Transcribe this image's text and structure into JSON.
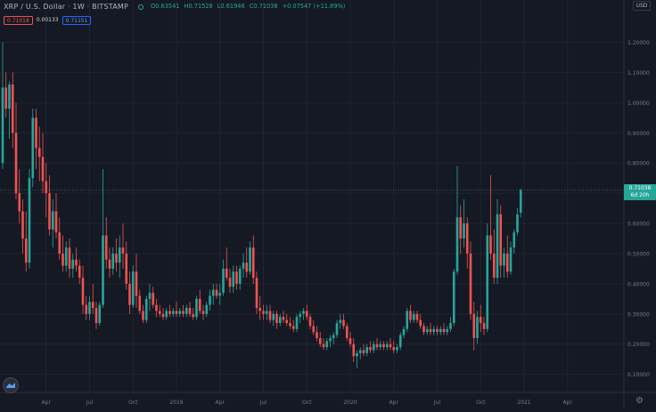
{
  "header": {
    "title": "XRP / U.S. Dollar · 1W · BITSTAMP",
    "open": "O0.63541",
    "high": "H0.71528",
    "low": "L0.61946",
    "close": "C0.71038",
    "change": "+0.07547 (+11.89%)"
  },
  "order_boxes": {
    "sell": "0.71018",
    "spread": "0.00133",
    "buy": "0.71151"
  },
  "currency_button": "USD",
  "last_price": {
    "price": "0.71038",
    "countdown": "6d 20h"
  },
  "colors": {
    "background": "#151924",
    "grid": "#1f2430",
    "up": "#26a69a",
    "down": "#ef5350",
    "axis_text": "#787b86",
    "last_price_line": "#26a69a"
  },
  "icons": {
    "logo": "tradingview-logo-icon",
    "settings": "gear-icon"
  },
  "chart_data": {
    "type": "candlestick",
    "ylim": [
      0.04,
      1.34
    ],
    "y_ticks": [
      "0.10000",
      "0.20000",
      "0.30000",
      "0.40000",
      "0.50000",
      "0.60000",
      "0.70000",
      "0.80000",
      "0.90000",
      "1.00000",
      "1.10000",
      "1.20000"
    ],
    "y_tick_values": [
      0.1,
      0.2,
      0.3,
      0.4,
      0.5,
      0.6,
      0.7,
      0.8,
      0.9,
      1.0,
      1.1,
      1.2
    ],
    "x_ticks": [
      "Apr",
      "Jul",
      "Oct",
      "2019",
      "Apr",
      "Jul",
      "Oct",
      "2020",
      "Apr",
      "Jul",
      "Oct",
      "2021",
      "Apr"
    ],
    "x_tick_index": [
      13,
      26,
      39,
      52,
      65,
      78,
      91,
      104,
      117,
      130,
      143,
      156,
      169
    ],
    "last_price": 0.71038,
    "candles": [
      [
        0.8,
        1.2,
        0.78,
        1.05
      ],
      [
        1.05,
        1.1,
        0.95,
        0.98
      ],
      [
        0.98,
        1.07,
        0.88,
        1.06
      ],
      [
        1.06,
        1.1,
        0.85,
        0.9
      ],
      [
        0.9,
        1.0,
        0.68,
        0.7
      ],
      [
        0.7,
        0.78,
        0.6,
        0.64
      ],
      [
        0.64,
        0.68,
        0.5,
        0.55
      ],
      [
        0.55,
        0.64,
        0.44,
        0.47
      ],
      [
        0.47,
        0.78,
        0.45,
        0.75
      ],
      [
        0.75,
        0.98,
        0.72,
        0.95
      ],
      [
        0.95,
        0.98,
        0.78,
        0.85
      ],
      [
        0.85,
        0.92,
        0.74,
        0.82
      ],
      [
        0.82,
        0.9,
        0.7,
        0.74
      ],
      [
        0.74,
        0.8,
        0.62,
        0.7
      ],
      [
        0.7,
        0.76,
        0.56,
        0.58
      ],
      [
        0.58,
        0.68,
        0.52,
        0.64
      ],
      [
        0.64,
        0.7,
        0.55,
        0.57
      ],
      [
        0.57,
        0.62,
        0.48,
        0.5
      ],
      [
        0.5,
        0.56,
        0.44,
        0.46
      ],
      [
        0.46,
        0.54,
        0.44,
        0.52
      ],
      [
        0.52,
        0.55,
        0.42,
        0.45
      ],
      [
        0.45,
        0.5,
        0.42,
        0.48
      ],
      [
        0.48,
        0.52,
        0.44,
        0.46
      ],
      [
        0.46,
        0.48,
        0.4,
        0.42
      ],
      [
        0.42,
        0.46,
        0.3,
        0.33
      ],
      [
        0.33,
        0.36,
        0.28,
        0.3
      ],
      [
        0.3,
        0.36,
        0.28,
        0.34
      ],
      [
        0.34,
        0.4,
        0.3,
        0.32
      ],
      [
        0.32,
        0.34,
        0.25,
        0.27
      ],
      [
        0.27,
        0.34,
        0.26,
        0.33
      ],
      [
        0.33,
        0.78,
        0.32,
        0.56
      ],
      [
        0.56,
        0.62,
        0.45,
        0.48
      ],
      [
        0.48,
        0.52,
        0.42,
        0.45
      ],
      [
        0.45,
        0.52,
        0.43,
        0.5
      ],
      [
        0.5,
        0.55,
        0.44,
        0.47
      ],
      [
        0.47,
        0.56,
        0.42,
        0.52
      ],
      [
        0.52,
        0.6,
        0.45,
        0.5
      ],
      [
        0.5,
        0.54,
        0.38,
        0.4
      ],
      [
        0.4,
        0.44,
        0.3,
        0.33
      ],
      [
        0.33,
        0.46,
        0.32,
        0.44
      ],
      [
        0.44,
        0.5,
        0.32,
        0.36
      ],
      [
        0.36,
        0.38,
        0.3,
        0.31
      ],
      [
        0.31,
        0.33,
        0.27,
        0.28
      ],
      [
        0.28,
        0.36,
        0.27,
        0.35
      ],
      [
        0.35,
        0.4,
        0.31,
        0.37
      ],
      [
        0.37,
        0.39,
        0.32,
        0.33
      ],
      [
        0.33,
        0.35,
        0.29,
        0.31
      ],
      [
        0.31,
        0.33,
        0.29,
        0.3
      ],
      [
        0.3,
        0.32,
        0.28,
        0.29
      ],
      [
        0.29,
        0.32,
        0.28,
        0.31
      ],
      [
        0.31,
        0.33,
        0.29,
        0.3
      ],
      [
        0.3,
        0.32,
        0.29,
        0.31
      ],
      [
        0.31,
        0.34,
        0.29,
        0.3
      ],
      [
        0.3,
        0.32,
        0.29,
        0.31
      ],
      [
        0.31,
        0.33,
        0.29,
        0.3
      ],
      [
        0.3,
        0.33,
        0.29,
        0.32
      ],
      [
        0.32,
        0.34,
        0.29,
        0.3
      ],
      [
        0.3,
        0.32,
        0.28,
        0.29
      ],
      [
        0.29,
        0.36,
        0.28,
        0.35
      ],
      [
        0.35,
        0.38,
        0.3,
        0.31
      ],
      [
        0.31,
        0.33,
        0.28,
        0.3
      ],
      [
        0.3,
        0.34,
        0.29,
        0.33
      ],
      [
        0.33,
        0.38,
        0.31,
        0.36
      ],
      [
        0.36,
        0.4,
        0.33,
        0.38
      ],
      [
        0.38,
        0.4,
        0.35,
        0.36
      ],
      [
        0.36,
        0.4,
        0.33,
        0.37
      ],
      [
        0.37,
        0.48,
        0.36,
        0.45
      ],
      [
        0.45,
        0.52,
        0.41,
        0.42
      ],
      [
        0.42,
        0.45,
        0.37,
        0.39
      ],
      [
        0.39,
        0.46,
        0.37,
        0.44
      ],
      [
        0.44,
        0.46,
        0.38,
        0.4
      ],
      [
        0.4,
        0.46,
        0.38,
        0.45
      ],
      [
        0.45,
        0.5,
        0.42,
        0.47
      ],
      [
        0.47,
        0.52,
        0.42,
        0.44
      ],
      [
        0.44,
        0.54,
        0.43,
        0.52
      ],
      [
        0.52,
        0.56,
        0.4,
        0.42
      ],
      [
        0.42,
        0.44,
        0.3,
        0.32
      ],
      [
        0.32,
        0.36,
        0.28,
        0.31
      ],
      [
        0.31,
        0.33,
        0.28,
        0.3
      ],
      [
        0.3,
        0.33,
        0.28,
        0.31
      ],
      [
        0.31,
        0.33,
        0.27,
        0.28
      ],
      [
        0.28,
        0.31,
        0.26,
        0.3
      ],
      [
        0.3,
        0.31,
        0.25,
        0.27
      ],
      [
        0.27,
        0.3,
        0.26,
        0.29
      ],
      [
        0.29,
        0.31,
        0.27,
        0.28
      ],
      [
        0.28,
        0.3,
        0.26,
        0.27
      ],
      [
        0.27,
        0.29,
        0.25,
        0.26
      ],
      [
        0.26,
        0.28,
        0.24,
        0.25
      ],
      [
        0.25,
        0.3,
        0.24,
        0.29
      ],
      [
        0.29,
        0.31,
        0.27,
        0.3
      ],
      [
        0.3,
        0.32,
        0.28,
        0.31
      ],
      [
        0.31,
        0.33,
        0.28,
        0.29
      ],
      [
        0.29,
        0.3,
        0.25,
        0.26
      ],
      [
        0.26,
        0.28,
        0.23,
        0.24
      ],
      [
        0.24,
        0.26,
        0.21,
        0.22
      ],
      [
        0.22,
        0.24,
        0.19,
        0.2
      ],
      [
        0.2,
        0.22,
        0.18,
        0.19
      ],
      [
        0.19,
        0.22,
        0.18,
        0.21
      ],
      [
        0.21,
        0.23,
        0.19,
        0.22
      ],
      [
        0.22,
        0.24,
        0.2,
        0.23
      ],
      [
        0.23,
        0.28,
        0.22,
        0.27
      ],
      [
        0.27,
        0.3,
        0.25,
        0.28
      ],
      [
        0.28,
        0.3,
        0.25,
        0.26
      ],
      [
        0.26,
        0.27,
        0.21,
        0.22
      ],
      [
        0.22,
        0.24,
        0.19,
        0.2
      ],
      [
        0.2,
        0.22,
        0.14,
        0.16
      ],
      [
        0.16,
        0.18,
        0.12,
        0.17
      ],
      [
        0.17,
        0.19,
        0.15,
        0.18
      ],
      [
        0.18,
        0.2,
        0.16,
        0.17
      ],
      [
        0.17,
        0.2,
        0.16,
        0.19
      ],
      [
        0.19,
        0.21,
        0.17,
        0.18
      ],
      [
        0.18,
        0.21,
        0.17,
        0.2
      ],
      [
        0.2,
        0.22,
        0.18,
        0.19
      ],
      [
        0.19,
        0.21,
        0.18,
        0.2
      ],
      [
        0.2,
        0.21,
        0.18,
        0.19
      ],
      [
        0.19,
        0.21,
        0.18,
        0.2
      ],
      [
        0.2,
        0.22,
        0.18,
        0.19
      ],
      [
        0.19,
        0.21,
        0.17,
        0.18
      ],
      [
        0.18,
        0.2,
        0.17,
        0.19
      ],
      [
        0.19,
        0.24,
        0.18,
        0.23
      ],
      [
        0.23,
        0.26,
        0.22,
        0.25
      ],
      [
        0.25,
        0.32,
        0.24,
        0.31
      ],
      [
        0.31,
        0.33,
        0.27,
        0.28
      ],
      [
        0.28,
        0.31,
        0.27,
        0.3
      ],
      [
        0.3,
        0.31,
        0.27,
        0.28
      ],
      [
        0.28,
        0.3,
        0.25,
        0.26
      ],
      [
        0.26,
        0.27,
        0.23,
        0.24
      ],
      [
        0.24,
        0.26,
        0.23,
        0.25
      ],
      [
        0.25,
        0.27,
        0.23,
        0.24
      ],
      [
        0.24,
        0.26,
        0.23,
        0.25
      ],
      [
        0.25,
        0.26,
        0.23,
        0.24
      ],
      [
        0.24,
        0.26,
        0.23,
        0.25
      ],
      [
        0.25,
        0.27,
        0.23,
        0.24
      ],
      [
        0.24,
        0.26,
        0.23,
        0.25
      ],
      [
        0.25,
        0.29,
        0.24,
        0.27
      ],
      [
        0.27,
        0.45,
        0.26,
        0.44
      ],
      [
        0.44,
        0.79,
        0.43,
        0.62
      ],
      [
        0.62,
        0.66,
        0.5,
        0.55
      ],
      [
        0.55,
        0.68,
        0.52,
        0.6
      ],
      [
        0.6,
        0.62,
        0.45,
        0.5
      ],
      [
        0.5,
        0.54,
        0.28,
        0.3
      ],
      [
        0.3,
        0.34,
        0.18,
        0.22
      ],
      [
        0.22,
        0.31,
        0.2,
        0.29
      ],
      [
        0.29,
        0.33,
        0.24,
        0.27
      ],
      [
        0.27,
        0.29,
        0.23,
        0.25
      ],
      [
        0.25,
        0.6,
        0.24,
        0.56
      ],
      [
        0.56,
        0.76,
        0.48,
        0.5
      ],
      [
        0.5,
        0.58,
        0.4,
        0.42
      ],
      [
        0.42,
        0.68,
        0.4,
        0.63
      ],
      [
        0.63,
        0.66,
        0.42,
        0.46
      ],
      [
        0.46,
        0.52,
        0.42,
        0.5
      ],
      [
        0.5,
        0.56,
        0.42,
        0.44
      ],
      [
        0.44,
        0.54,
        0.43,
        0.52
      ],
      [
        0.52,
        0.58,
        0.5,
        0.57
      ],
      [
        0.57,
        0.65,
        0.56,
        0.63
      ],
      [
        0.63541,
        0.71528,
        0.61946,
        0.71038
      ]
    ]
  }
}
